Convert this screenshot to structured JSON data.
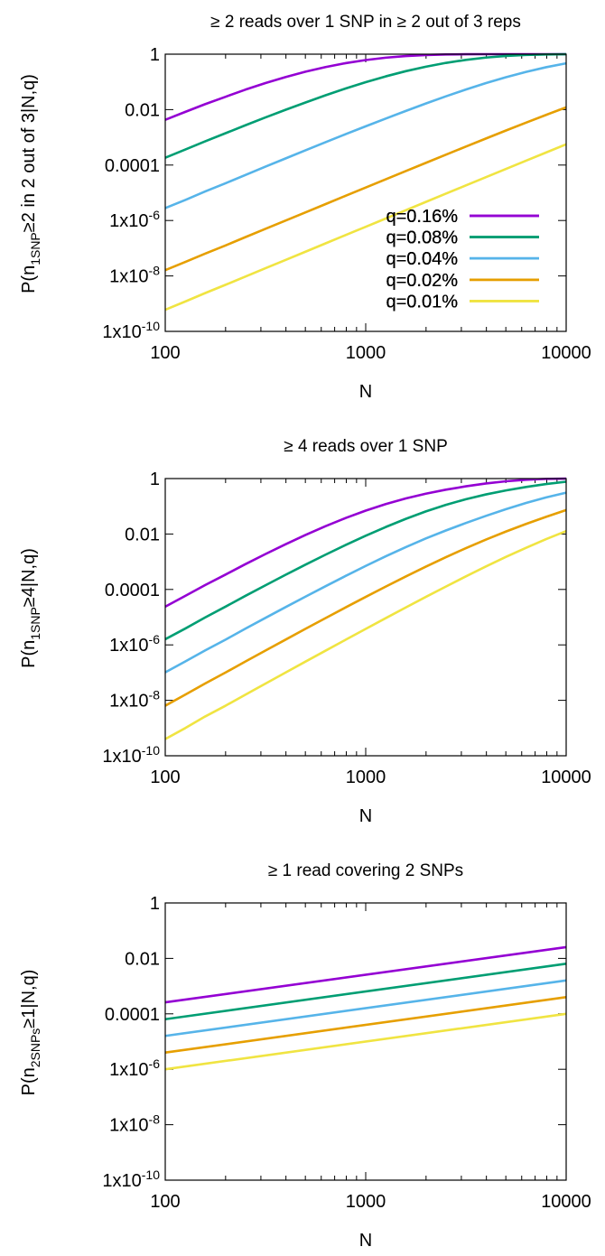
{
  "chart_data": [
    {
      "type": "line",
      "title": "≥ 2 reads over 1 SNP in ≥ 2 out of 3 reps",
      "xlabel": "N",
      "ylabel": {
        "before": "P(n",
        "sub": "1SNP",
        "after": "≥2 in 2 out of 3|N,q)"
      },
      "xscale": "log",
      "yscale": "log",
      "xlim": [
        100,
        10000
      ],
      "ylim": [
        1e-10,
        1
      ],
      "xticks": [
        "100",
        "1000",
        "10000"
      ],
      "yticks": [
        {
          "value": 1,
          "base": "1",
          "exp": ""
        },
        {
          "value": 0.01,
          "base": "0.01",
          "exp": ""
        },
        {
          "value": 0.0001,
          "base": "0.0001",
          "exp": ""
        },
        {
          "value": 1e-06,
          "base": "1x10",
          "exp": "-6"
        },
        {
          "value": 1e-08,
          "base": "1x10",
          "exp": "-8"
        },
        {
          "value": 1e-10,
          "base": "1x10",
          "exp": "-10"
        }
      ],
      "legend_position": "bottom-right",
      "x": [
        100,
        126,
        158,
        200,
        251,
        316,
        398,
        501,
        631,
        794,
        1000,
        1259,
        1585,
        1995,
        2512,
        3162,
        3981,
        5012,
        6310,
        7943,
        10000
      ],
      "series": [
        {
          "name": "q=0.16%",
          "color": "#9400d3",
          "values": [
            0.0043,
            0.0083,
            0.0157,
            0.0291,
            0.0525,
            0.0909,
            0.1497,
            0.2333,
            0.3428,
            0.4742,
            0.6141,
            0.7467,
            0.8565,
            0.9332,
            0.976,
            0.9939,
            0.999,
            0.9999,
            1.0,
            1.0,
            1.0
          ]
        },
        {
          "name": "q=0.08%",
          "color": "#009e73",
          "values": [
            0.000184,
            0.000364,
            0.000716,
            0.00141,
            0.00272,
            0.00521,
            0.00983,
            0.0181,
            0.0329,
            0.0578,
            0.0978,
            0.1584,
            0.2438,
            0.3539,
            0.4847,
            0.6238,
            0.7544,
            0.8617,
            0.9362,
            0.9773,
            0.9943
          ]
        },
        {
          "name": "q=0.04%",
          "color": "#56b4e9",
          "values": [
            2.8e-06,
            5.5e-06,
            1.11e-05,
            2.21e-05,
            4.39e-05,
            8.74e-05,
            0.000173,
            0.000341,
            0.000669,
            0.0013,
            0.0025,
            0.00476,
            0.00896,
            0.0166,
            0.0301,
            0.0531,
            0.0905,
            0.1479,
            0.2302,
            0.3382,
            0.468
          ]
        },
        {
          "name": "q=0.02%",
          "color": "#e69f00",
          "values": [
            1.62e-08,
            3.2e-08,
            6.35e-08,
            1.26e-07,
            2.51e-07,
            4.99e-07,
            9.92e-07,
            1.97e-06,
            3.92e-06,
            7.79e-06,
            1.55e-05,
            3.07e-05,
            6.07e-05,
            0.00012,
            0.000236,
            0.000465,
            0.00091,
            0.00177,
            0.0034,
            0.00646,
            0.0121
          ]
        },
        {
          "name": "q=0.01%",
          "color": "#f0e442",
          "values": [
            6e-10,
            1.2e-09,
            2.4e-09,
            4.8e-09,
            9.5e-09,
            1.89e-08,
            3.77e-08,
            7.5e-08,
            1.5e-07,
            2.98e-07,
            5.94e-07,
            1.18e-06,
            2.35e-06,
            4.68e-06,
            9.31e-06,
            1.85e-05,
            3.67e-05,
            7.27e-05,
            0.000144,
            0.000284,
            0.000559
          ]
        }
      ]
    },
    {
      "type": "line",
      "title": "≥ 4 reads over 1 SNP",
      "xlabel": "N",
      "ylabel": {
        "before": "P(n",
        "sub": "1SNP",
        "after": "≥4|N,q)"
      },
      "xscale": "log",
      "yscale": "log",
      "xlim": [
        100,
        10000
      ],
      "ylim": [
        1e-10,
        1
      ],
      "xticks": [
        "100",
        "1000",
        "10000"
      ],
      "yticks": [
        {
          "value": 1,
          "base": "1",
          "exp": ""
        },
        {
          "value": 0.01,
          "base": "0.01",
          "exp": ""
        },
        {
          "value": 0.0001,
          "base": "0.0001",
          "exp": ""
        },
        {
          "value": 1e-06,
          "base": "1x10",
          "exp": "-6"
        },
        {
          "value": 1e-08,
          "base": "1x10",
          "exp": "-8"
        },
        {
          "value": 1e-10,
          "base": "1x10",
          "exp": "-10"
        }
      ],
      "legend_position": "bottom-right",
      "x": [
        100,
        126,
        158,
        200,
        251,
        316,
        398,
        501,
        631,
        794,
        1000,
        1259,
        1585,
        1995,
        2512,
        3162,
        3981,
        5012,
        6310,
        7943,
        10000
      ],
      "series": [
        {
          "name": "q=0.16%",
          "color": "#9400d3",
          "values": [
            2.39e-05,
            5.87e-05,
            0.000143,
            0.000345,
            0.000817,
            0.00189,
            0.00426,
            0.00925,
            0.0192,
            0.0377,
            0.0697,
            0.1199,
            0.1914,
            0.2844,
            0.3969,
            0.5254,
            0.6651,
            0.7988,
            0.908,
            0.9727,
            0.9961
          ]
        },
        {
          "name": "q=0.08%",
          "color": "#009e73",
          "values": [
            1.6e-06,
            3.9e-06,
            9.7e-06,
            2.4e-05,
            5.85e-05,
            0.000141,
            0.000336,
            0.000786,
            0.0018,
            0.00401,
            0.00865,
            0.0179,
            0.0352,
            0.0652,
            0.1127,
            0.1802,
            0.2678,
            0.3743,
            0.4976,
            0.6345,
            0.7681
          ]
        },
        {
          "name": "q=0.04%",
          "color": "#56b4e9",
          "values": [
            1.02e-07,
            2.53e-07,
            6.28e-07,
            1.55e-06,
            3.84e-06,
            9.41e-06,
            2.29e-05,
            5.52e-05,
            0.000131,
            0.000307,
            0.000705,
            0.00157,
            0.00337,
            0.0069,
            0.0134,
            0.025,
            0.0451,
            0.0788,
            0.1317,
            0.2087,
            0.3093
          ]
        },
        {
          "name": "q=0.02%",
          "color": "#e69f00",
          "values": [
            6.4e-09,
            1.61e-08,
            4.03e-08,
            1.01e-07,
            2.51e-07,
            6.23e-07,
            1.54e-06,
            3.8e-06,
            9.28e-06,
            2.25e-05,
            5.38e-05,
            0.000127,
            0.000294,
            0.000665,
            0.00146,
            0.0031,
            0.00632,
            0.0123,
            0.0231,
            0.0417,
            0.0732
          ]
        },
        {
          "name": "q=0.01%",
          "color": "#f0e442",
          "values": [
            4e-10,
            1e-09,
            2.6e-09,
            6.4e-09,
            1.6e-08,
            4e-08,
            1e-07,
            2.5e-07,
            6.2e-07,
            1.53e-06,
            3.77e-06,
            9.24e-06,
            2.24e-05,
            5.38e-05,
            0.000127,
            0.000297,
            0.000678,
            0.0015,
            0.00319,
            0.00652,
            0.0127
          ]
        }
      ]
    },
    {
      "type": "line",
      "title": "≥ 1 read covering 2 SNPs",
      "xlabel": "N",
      "ylabel": {
        "before": "P(n",
        "sub": "2SNPs",
        "after": "≥1|N,q)"
      },
      "xscale": "log",
      "yscale": "log",
      "xlim": [
        100,
        10000
      ],
      "ylim": [
        1e-10,
        1
      ],
      "xticks": [
        "100",
        "1000",
        "10000"
      ],
      "yticks": [
        {
          "value": 1,
          "base": "1",
          "exp": ""
        },
        {
          "value": 0.01,
          "base": "0.01",
          "exp": ""
        },
        {
          "value": 0.0001,
          "base": "0.0001",
          "exp": ""
        },
        {
          "value": 1e-06,
          "base": "1x10",
          "exp": "-6"
        },
        {
          "value": 1e-08,
          "base": "1x10",
          "exp": "-8"
        },
        {
          "value": 1e-10,
          "base": "1x10",
          "exp": "-10"
        }
      ],
      "legend_position": "bottom-right",
      "x": [
        100,
        10000
      ],
      "series": [
        {
          "name": "q=0.16%",
          "color": "#9400d3",
          "values": [
            0.00026,
            0.0255
          ]
        },
        {
          "name": "q=0.08%",
          "color": "#009e73",
          "values": [
            6.4e-05,
            0.0064
          ]
        },
        {
          "name": "q=0.04%",
          "color": "#56b4e9",
          "values": [
            1.6e-05,
            0.0016
          ]
        },
        {
          "name": "q=0.02%",
          "color": "#e69f00",
          "values": [
            4e-06,
            0.0004
          ]
        },
        {
          "name": "q=0.01%",
          "color": "#f0e442",
          "values": [
            1e-06,
            0.0001
          ]
        }
      ]
    }
  ]
}
